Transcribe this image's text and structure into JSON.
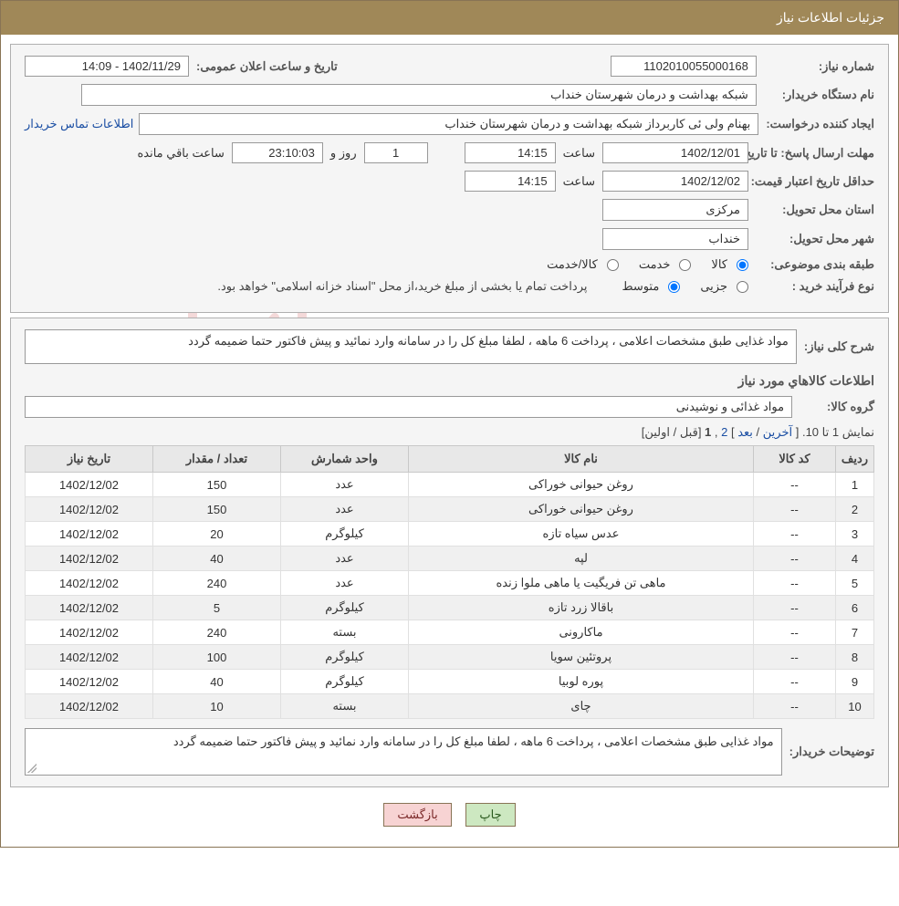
{
  "header": {
    "title": "جزئیات اطلاعات نیاز"
  },
  "form": {
    "need_no_label": "شماره نیاز:",
    "need_no": "1102010055000168",
    "announce_label": "تاریخ و ساعت اعلان عمومی:",
    "announce_value": "1402/11/29 - 14:09",
    "buyer_label": "نام دستگاه خریدار:",
    "buyer_value": "شبکه بهداشت و درمان شهرستان خنداب",
    "requester_label": "ایجاد کننده درخواست:",
    "requester_value": "بهنام  ولی ئی کاربرداز شبکه بهداشت و درمان شهرستان خنداب",
    "contact_link": "اطلاعات تماس خریدار",
    "deadline_label": "مهلت ارسال پاسخ:",
    "to_date_label": "تا تاریخ:",
    "deadline_date": "1402/12/01",
    "time_label": "ساعت",
    "deadline_time": "14:15",
    "days_word": "روز و",
    "days_remaining": "1",
    "countdown": "23:10:03",
    "remaining_text": "ساعت باقي مانده",
    "min_valid_label": "حداقل تاریخ اعتبار قیمت:",
    "min_valid_date": "1402/12/02",
    "min_valid_time": "14:15",
    "province_label": "استان محل تحویل:",
    "province_value": "مرکزی",
    "city_label": "شهر محل تحویل:",
    "city_value": "خنداب",
    "category_label": "طبقه بندی موضوعی:",
    "cat_kala": "کالا",
    "cat_khedmat": "خدمت",
    "cat_both": "کالا/خدمت",
    "process_label": "نوع فرآیند خرید :",
    "proc_partial": "جزیی",
    "proc_medium": "متوسط",
    "process_note": "پرداخت تمام یا بخشی از مبلغ خرید،از محل \"اسناد خزانه اسلامی\" خواهد بود."
  },
  "need": {
    "desc_label": "شرح کلی نیاز:",
    "desc_value": "مواد غذایی طبق مشخصات اعلامی ، پرداخت 6 ماهه ، لطفا مبلغ کل را در سامانه وارد نمائید و پیش فاکتور حتما ضمیمه گردد",
    "items_title": "اطلاعات کالاهاي مورد نیاز",
    "group_label": "گروه کالا:",
    "group_value": "مواد غذائی و نوشیدنی"
  },
  "pager": {
    "text_prefix": "نمایش 1 تا 10.",
    "last": "آخرین",
    "next": "بعد",
    "p2": "2",
    "p1": "1",
    "prev": "قبل",
    "first": "اولین"
  },
  "table": {
    "columns": {
      "idx": "ردیف",
      "code": "کد کالا",
      "name": "نام کالا",
      "unit": "واحد شمارش",
      "qty": "تعداد / مقدار",
      "date": "تاریخ نیاز"
    },
    "rows": [
      {
        "idx": "1",
        "code": "--",
        "name": "روغن حیوانی خوراکی",
        "unit": "عدد",
        "qty": "150",
        "date": "1402/12/02"
      },
      {
        "idx": "2",
        "code": "--",
        "name": "روغن حیوانی خوراکی",
        "unit": "عدد",
        "qty": "150",
        "date": "1402/12/02"
      },
      {
        "idx": "3",
        "code": "--",
        "name": "عدس سیاه تازه",
        "unit": "کیلوگرم",
        "qty": "20",
        "date": "1402/12/02"
      },
      {
        "idx": "4",
        "code": "--",
        "name": "لپه",
        "unit": "عدد",
        "qty": "40",
        "date": "1402/12/02"
      },
      {
        "idx": "5",
        "code": "--",
        "name": "ماهی تن فریگیت یا ماهی ملوا زنده",
        "unit": "عدد",
        "qty": "240",
        "date": "1402/12/02"
      },
      {
        "idx": "6",
        "code": "--",
        "name": "باقالا زرد تازه",
        "unit": "کیلوگرم",
        "qty": "5",
        "date": "1402/12/02"
      },
      {
        "idx": "7",
        "code": "--",
        "name": "ماکارونی",
        "unit": "بسته",
        "qty": "240",
        "date": "1402/12/02"
      },
      {
        "idx": "8",
        "code": "--",
        "name": "پروتئین سویا",
        "unit": "کیلوگرم",
        "qty": "100",
        "date": "1402/12/02"
      },
      {
        "idx": "9",
        "code": "--",
        "name": "پوره لوبیا",
        "unit": "کیلوگرم",
        "qty": "40",
        "date": "1402/12/02"
      },
      {
        "idx": "10",
        "code": "--",
        "name": "چای",
        "unit": "بسته",
        "qty": "10",
        "date": "1402/12/02"
      }
    ]
  },
  "notes": {
    "label": "توضیحات خریدار:",
    "value": "مواد غذایی طبق مشخصات اعلامی ، پرداخت 6 ماهه ، لطفا مبلغ کل را در سامانه وارد نمائید و پیش فاکتور حتما ضمیمه گردد"
  },
  "buttons": {
    "print": "چاپ",
    "back": "بازگشت"
  },
  "watermark": {
    "t1": "AriaTender",
    "t2": ".net"
  },
  "colors": {
    "header_bg": "#a08858",
    "border": "#887455",
    "section_bg": "#f5f5f5",
    "link": "#1a4ea3"
  }
}
